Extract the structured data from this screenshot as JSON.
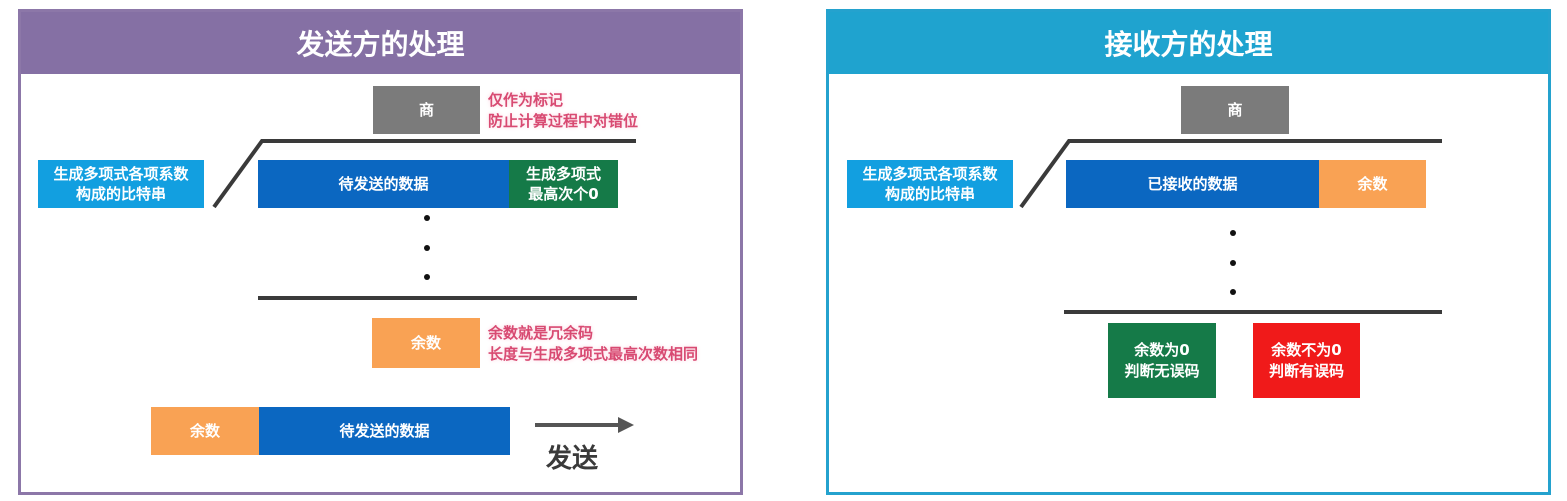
{
  "sender": {
    "title": "发送方的处理",
    "quotient": "商",
    "quotient_note": [
      "仅作为标记",
      "防止计算过程中对错位"
    ],
    "generator_bits": [
      "生成多项式各项系数",
      "构成的比特串"
    ],
    "data_to_send": "待发送的数据",
    "zeros": [
      "生成多项式",
      "最高次个0"
    ],
    "remainder": "余数",
    "remainder_note": [
      "余数就是冗余码",
      "长度与生成多项式最高次数相同"
    ],
    "frame_remainder": "余数",
    "frame_data": "待发送的数据",
    "send_label": "发送"
  },
  "receiver": {
    "title": "接收方的处理",
    "quotient": "商",
    "generator_bits": [
      "生成多项式各项系数",
      "构成的比特串"
    ],
    "received_data": "已接收的数据",
    "remainder": "余数",
    "result_ok": [
      "余数为0",
      "判断无误码"
    ],
    "result_err": [
      "余数不为0",
      "判断有误码"
    ]
  },
  "colors": {
    "sender_header": "#8570a4",
    "receiver_header": "#1fa3cf",
    "data_blue": "#0b67c1",
    "green": "#157a48",
    "orange": "#f9a254",
    "gray": "#7b7b7b",
    "cyan": "#129fe0",
    "red": "#f01a1a",
    "note_pink": "#d84a72"
  }
}
